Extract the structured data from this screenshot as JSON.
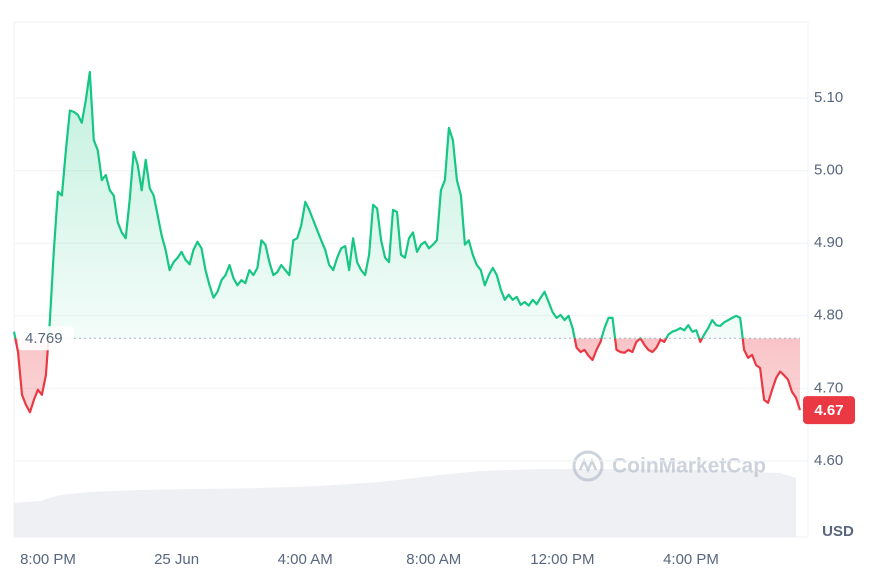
{
  "chart_data": {
    "type": "line",
    "values": [
      4.778,
      4.75,
      4.691,
      4.677,
      4.667,
      4.684,
      4.698,
      4.691,
      4.718,
      4.794,
      4.891,
      4.971,
      4.966,
      5.028,
      5.083,
      5.081,
      5.077,
      5.066,
      5.097,
      5.136,
      5.042,
      5.028,
      4.987,
      4.994,
      4.973,
      4.966,
      4.929,
      4.915,
      4.907,
      4.96,
      5.026,
      5.008,
      4.973,
      5.015,
      4.976,
      4.966,
      4.939,
      4.911,
      4.891,
      4.863,
      4.874,
      4.88,
      4.888,
      4.877,
      4.871,
      4.891,
      4.902,
      4.893,
      4.863,
      4.842,
      4.825,
      4.833,
      4.849,
      4.856,
      4.87,
      4.852,
      4.842,
      4.849,
      4.845,
      4.863,
      4.856,
      4.866,
      4.904,
      4.898,
      4.874,
      4.856,
      4.86,
      4.87,
      4.863,
      4.856,
      4.904,
      4.907,
      4.925,
      4.957,
      4.946,
      4.932,
      4.918,
      4.904,
      4.891,
      4.87,
      4.863,
      4.88,
      4.893,
      4.896,
      4.863,
      4.907,
      4.874,
      4.863,
      4.856,
      4.884,
      4.953,
      4.948,
      4.904,
      4.88,
      4.874,
      4.946,
      4.943,
      4.884,
      4.88,
      4.907,
      4.915,
      4.888,
      4.898,
      4.902,
      4.893,
      4.898,
      4.904,
      4.973,
      4.987,
      5.059,
      5.042,
      4.987,
      4.966,
      4.898,
      4.904,
      4.884,
      4.87,
      4.863,
      4.842,
      4.856,
      4.866,
      4.856,
      4.836,
      4.822,
      4.829,
      4.822,
      4.826,
      4.815,
      4.819,
      4.814,
      4.822,
      4.816,
      4.825,
      4.833,
      4.819,
      4.805,
      4.797,
      4.801,
      4.794,
      4.8,
      4.783,
      4.756,
      4.75,
      4.753,
      4.745,
      4.739,
      4.753,
      4.764,
      4.783,
      4.797,
      4.797,
      4.753,
      4.75,
      4.749,
      4.753,
      4.75,
      4.764,
      4.769,
      4.76,
      4.753,
      4.75,
      4.756,
      4.767,
      4.764,
      4.774,
      4.778,
      4.78,
      4.783,
      4.78,
      4.787,
      4.778,
      4.78,
      4.764,
      4.774,
      4.783,
      4.794,
      4.787,
      4.786,
      4.791,
      4.794,
      4.797,
      4.8,
      4.797,
      4.753,
      4.742,
      4.746,
      4.732,
      4.728,
      4.684,
      4.68,
      4.698,
      4.714,
      4.723,
      4.718,
      4.712,
      4.695,
      4.687,
      4.67
    ],
    "baseline": 4.769,
    "up_color": "#16c784",
    "down_color": "#ea3943",
    "ylim": [
      4.495,
      5.205
    ],
    "yticks": [
      {
        "value": 4.6,
        "label": "4.60"
      },
      {
        "value": 4.7,
        "label": "4.70"
      },
      {
        "value": 4.8,
        "label": "4.80"
      },
      {
        "value": 4.9,
        "label": "4.90"
      },
      {
        "value": 5.0,
        "label": "5.00"
      },
      {
        "value": 5.1,
        "label": "5.10"
      }
    ],
    "x_labels": [
      "8:00 PM",
      "25 Jun",
      "4:00 AM",
      "8:00 AM",
      "12:00 PM",
      "4:00 PM"
    ],
    "currency": "USD",
    "watermark": "CoinMarketCap",
    "grid": true
  }
}
